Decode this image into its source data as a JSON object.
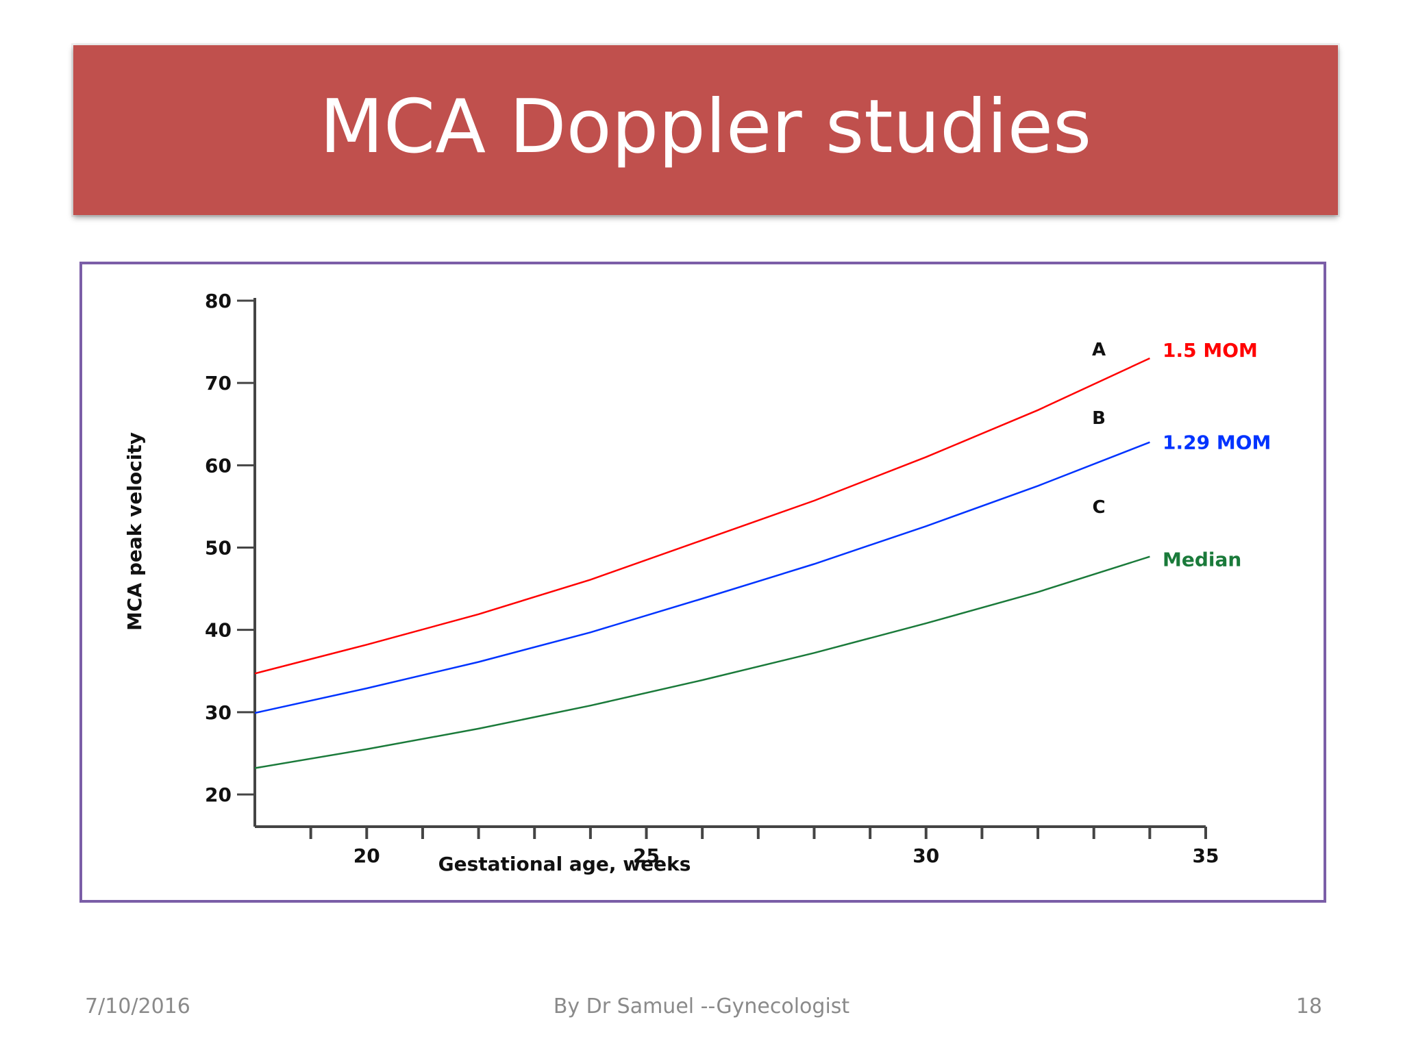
{
  "slide": {
    "title": "MCA Doppler studies",
    "footer_date": "7/10/2016",
    "footer_author": "By Dr Samuel --Gynecologist",
    "footer_page": "18"
  },
  "colors": {
    "banner": "#c0504d",
    "frame": "#7b5ea7",
    "series_a": "#ff0000",
    "series_b": "#0033ff",
    "series_c": "#1a7a3a"
  },
  "chart_data": {
    "type": "line",
    "title": "",
    "xlabel": "Gestational age, weeks",
    "ylabel": "MCA peak velocity",
    "xlim": [
      18,
      35
    ],
    "ylim": [
      20,
      80
    ],
    "xticks": [
      20,
      25,
      30,
      35
    ],
    "yticks": [
      20,
      30,
      40,
      50,
      60,
      70,
      80
    ],
    "x": [
      18,
      20,
      22,
      24,
      26,
      28,
      30,
      32,
      34
    ],
    "series": [
      {
        "name": "1.5 MOM",
        "letter": "A",
        "color": "#ff0000",
        "values": [
          34.7,
          38.2,
          41.9,
          46.1,
          50.9,
          55.7,
          61.0,
          66.7,
          73.0
        ]
      },
      {
        "name": "1.29 MOM",
        "letter": "B",
        "color": "#0033ff",
        "values": [
          29.9,
          32.9,
          36.1,
          39.7,
          43.8,
          48.0,
          52.6,
          57.5,
          62.8
        ]
      },
      {
        "name": "Median",
        "letter": "C",
        "color": "#1a7a3a",
        "values": [
          23.2,
          25.5,
          28.0,
          30.8,
          33.9,
          37.2,
          40.8,
          44.6,
          48.9
        ]
      }
    ],
    "grid": false,
    "legend": "inline-right"
  }
}
